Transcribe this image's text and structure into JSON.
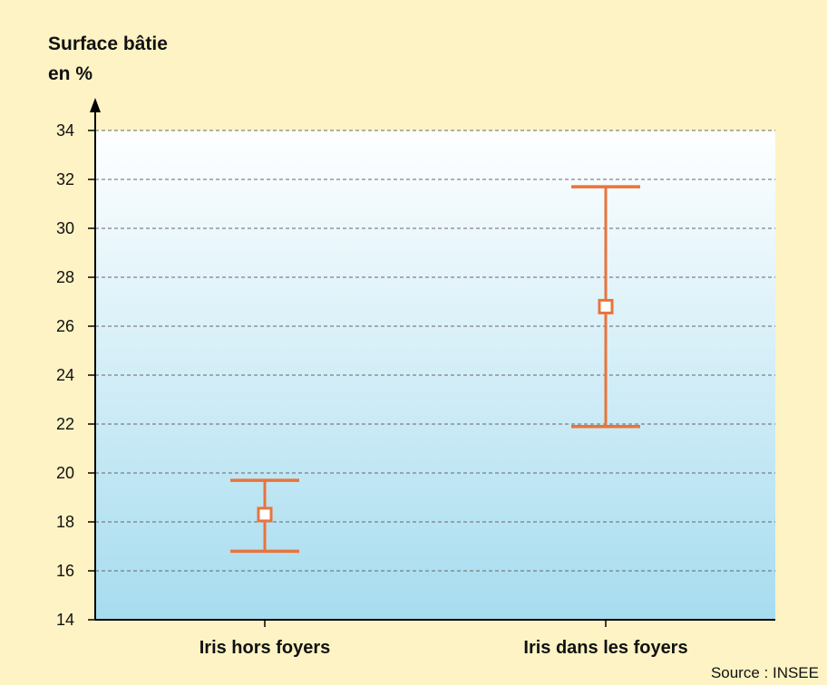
{
  "chart_data": {
    "type": "error-bar",
    "ylabel": [
      "Surface bâtie",
      "en %"
    ],
    "ylim": [
      14,
      34
    ],
    "yticks": [
      14,
      16,
      18,
      20,
      22,
      24,
      26,
      28,
      30,
      32,
      34
    ],
    "grid": true,
    "categories": [
      "Iris hors foyers",
      "Iris dans les foyers"
    ],
    "points": [
      {
        "category": "Iris hors foyers",
        "low": 16.8,
        "mid": 18.3,
        "high": 19.7
      },
      {
        "category": "Iris dans les foyers",
        "low": 21.9,
        "mid": 26.8,
        "high": 31.7
      }
    ],
    "source": "Source : INSEE",
    "colors": {
      "background": "#fdf3c4",
      "plot_top": "#ffffff",
      "plot_bottom": "#a6dcef",
      "marker": "#e8743b",
      "axis": "#000000",
      "grid": "#666666"
    }
  }
}
